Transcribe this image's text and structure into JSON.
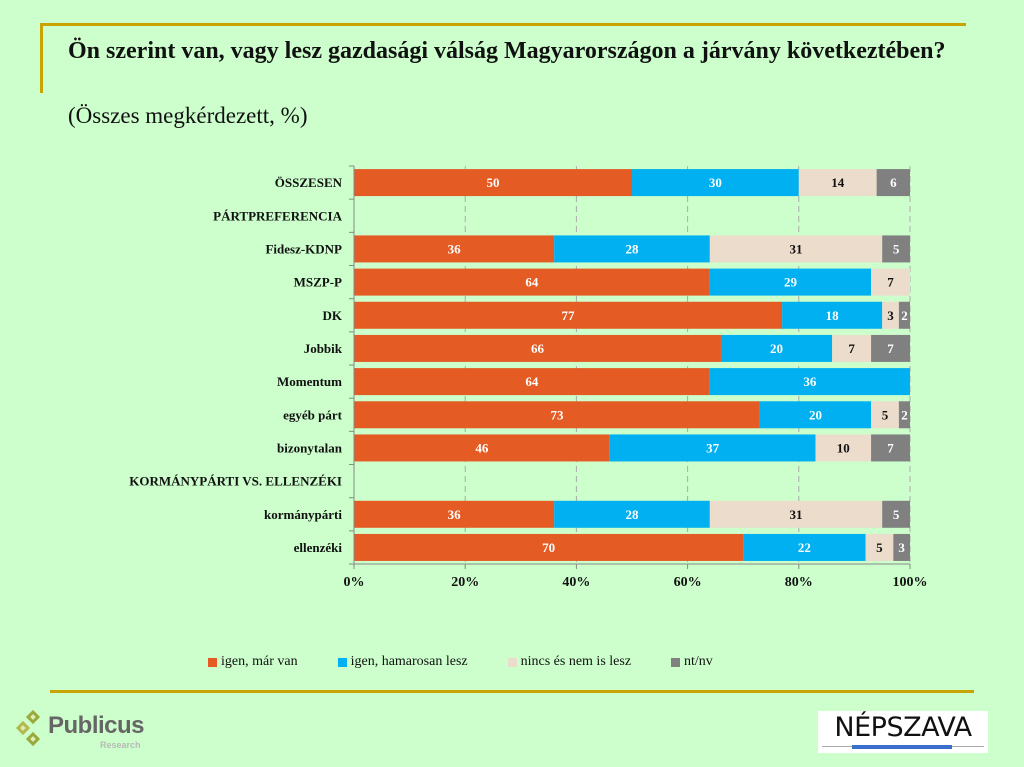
{
  "header": {
    "title": "Ön szerint van, vagy lesz gazdasági válság Magyarországon a járvány következtében?",
    "subtitle": "(Összes megkérdezett, %)"
  },
  "chart_data": {
    "type": "bar",
    "orientation": "horizontal",
    "stacked": true,
    "title": "Ön szerint van, vagy lesz gazdasági válság Magyarországon a járvány következtében?",
    "subtitle": "(Összes megkérdezett, %)",
    "xlabel": "",
    "ylabel": "",
    "xlim": [
      0,
      100
    ],
    "x_ticks": [
      "0%",
      "20%",
      "40%",
      "60%",
      "80%",
      "100%"
    ],
    "grid": "vertical dashed",
    "legend_position": "bottom",
    "categories": [
      "ÖSSZESEN",
      "PÁRTPREFERENCIA",
      "Fidesz-KDNP",
      "MSZP-P",
      "DK",
      "Jobbik",
      "Momentum",
      "egyéb párt",
      "bizonytalan",
      "KORMÁNYPÁRTI VS. ELLENZÉKI",
      "kormánypárti",
      "ellenzéki"
    ],
    "series": [
      {
        "name": "igen, már van",
        "color": "#e55b24",
        "label_color": "#ffffff",
        "values": [
          50,
          null,
          36,
          64,
          77,
          66,
          64,
          73,
          46,
          null,
          36,
          70
        ]
      },
      {
        "name": "igen, hamarosan lesz",
        "color": "#00b0f0",
        "label_color": "#ffffff",
        "values": [
          30,
          null,
          28,
          29,
          18,
          20,
          36,
          20,
          37,
          null,
          28,
          22
        ]
      },
      {
        "name": "nincs és nem is lesz",
        "color": "#ebdccb",
        "label_color": "#111111",
        "values": [
          14,
          null,
          31,
          7,
          3,
          7,
          null,
          5,
          10,
          null,
          31,
          5
        ]
      },
      {
        "name": "nt/nv",
        "color": "#808080",
        "label_color": "#ffffff",
        "values": [
          6,
          null,
          5,
          null,
          2,
          7,
          null,
          2,
          7,
          null,
          5,
          3
        ]
      }
    ]
  },
  "legend": {
    "items": [
      {
        "label": "igen, már van",
        "color": "#e55b24"
      },
      {
        "label": "igen, hamarosan lesz",
        "color": "#00b0f0"
      },
      {
        "label": "nincs és nem is lesz",
        "color": "#ebdccb"
      },
      {
        "label": "nt/nv",
        "color": "#808080"
      }
    ]
  },
  "footer": {
    "left_logo": {
      "name": "Publicus",
      "sub": "Research"
    },
    "right_logo": {
      "name": "NÉPSZAVA"
    }
  },
  "colors": {
    "background": "#ccffcc",
    "rule": "#c9a300"
  }
}
